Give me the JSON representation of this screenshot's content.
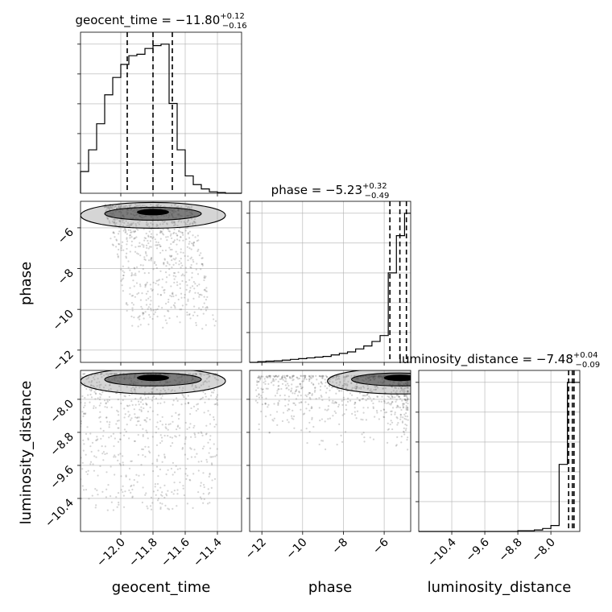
{
  "chart_data": {
    "type": "corner",
    "parameters": [
      "geocent_time",
      "phase",
      "luminosity_distance"
    ],
    "axes": {
      "geocent_time": {
        "label": "geocent_time",
        "range": [
          -12.25,
          -11.25
        ],
        "ticks": [
          -12.0,
          -11.8,
          -11.6,
          -11.4
        ],
        "tick_labels": [
          "−12.0",
          "−11.8",
          "−11.6",
          "−11.4"
        ]
      },
      "phase": {
        "label": "phase",
        "range": [
          -12.6,
          -4.7
        ],
        "ticks": [
          -12,
          -10,
          -8,
          -6
        ],
        "tick_labels": [
          "−12",
          "−10",
          "−8",
          "−6"
        ]
      },
      "luminosity_distance": {
        "label": "luminosity_distance",
        "range": [
          -11.2,
          -7.3
        ],
        "ticks": [
          -10.4,
          -9.6,
          -8.8,
          -8.0
        ],
        "tick_labels": [
          "−10.4",
          "−9.6",
          "−8.8",
          "−8.0"
        ]
      }
    },
    "titles": {
      "geocent_time": {
        "name": "geocent_time",
        "value": "−11.80",
        "plus": "+0.12",
        "minus": "−0.16"
      },
      "phase": {
        "name": "phase",
        "value": "−5.23",
        "plus": "+0.32",
        "minus": "−0.49"
      },
      "luminosity_distance": {
        "name": "luminosity_distance",
        "value": "−7.48",
        "plus": "+0.04",
        "minus": "−0.09"
      }
    },
    "marginals": {
      "geocent_time": {
        "bin_edges": [
          -12.25,
          -12.2,
          -12.15,
          -12.1,
          -12.05,
          -12.0,
          -11.95,
          -11.9,
          -11.85,
          -11.8,
          -11.75,
          -11.7,
          -11.65,
          -11.6,
          -11.55,
          -11.5,
          -11.45,
          -11.4,
          -11.35,
          -11.3,
          -11.25
        ],
        "counts": [
          0.15,
          0.3,
          0.48,
          0.68,
          0.8,
          0.89,
          0.95,
          0.96,
          1.0,
          1.02,
          1.03,
          0.62,
          0.3,
          0.12,
          0.06,
          0.03,
          0.01,
          0.005,
          0,
          0
        ],
        "quantiles": [
          -11.96,
          -11.8,
          -11.68
        ]
      },
      "phase": {
        "bin_edges": [
          -12.6,
          -12.2,
          -11.8,
          -11.4,
          -11.0,
          -10.6,
          -10.2,
          -9.8,
          -9.4,
          -9.0,
          -8.6,
          -8.2,
          -7.8,
          -7.4,
          -7.0,
          -6.6,
          -6.2,
          -5.8,
          -5.4,
          -5.0,
          -4.7
        ],
        "counts": [
          0,
          0.005,
          0.008,
          0.01,
          0.015,
          0.02,
          0.025,
          0.03,
          0.035,
          0.04,
          0.05,
          0.06,
          0.07,
          0.09,
          0.11,
          0.14,
          0.18,
          0.6,
          0.85,
          1.0
        ],
        "quantiles": [
          -5.72,
          -5.23,
          -4.91
        ]
      },
      "luminosity_distance": {
        "bin_edges": [
          -11.2,
          -11.0,
          -10.8,
          -10.6,
          -10.4,
          -10.2,
          -10.0,
          -9.8,
          -9.6,
          -9.4,
          -9.2,
          -9.0,
          -8.8,
          -8.6,
          -8.4,
          -8.2,
          -8.0,
          -7.8,
          -7.6,
          -7.4,
          -7.3
        ],
        "counts": [
          0,
          0,
          0,
          0,
          0,
          0,
          0,
          0,
          0,
          0,
          0,
          0,
          0.005,
          0.005,
          0.01,
          0.02,
          0.04,
          0.45,
          1.0,
          1.0
        ],
        "quantiles": [
          -7.57,
          -7.48,
          -7.44
        ]
      }
    },
    "show_grid": true,
    "colors": {
      "line": "#000000",
      "quantile": "#000000",
      "grid": "#b0b0b0",
      "sample": "#555555"
    }
  }
}
